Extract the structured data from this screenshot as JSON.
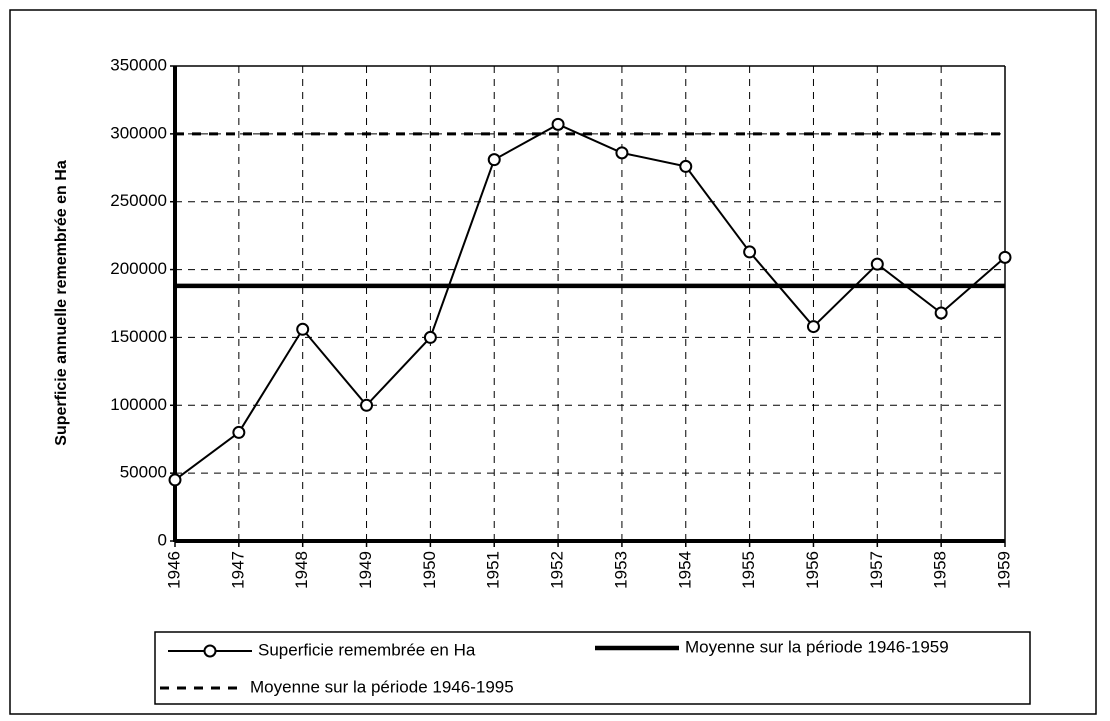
{
  "chart_data": {
    "type": "line",
    "y_label": "Superficie annuelle remembrée en Ha",
    "categories": [
      "1946",
      "1947",
      "1948",
      "1949",
      "1950",
      "1951",
      "1952",
      "1953",
      "1954",
      "1955",
      "1956",
      "1957",
      "1958",
      "1959"
    ],
    "series": [
      {
        "name": "Superficie remembrée en Ha",
        "color": "#000000",
        "line_style": "solid",
        "marker": "circle",
        "values": [
          45000,
          80000,
          156000,
          100000,
          150000,
          281000,
          307000,
          286000,
          276000,
          213000,
          158000,
          204000,
          168000,
          209000
        ]
      },
      {
        "name": "Moyenne sur la période 1946-1959",
        "color": "#000000",
        "line_style": "solid",
        "marker": "none",
        "values": [
          188000,
          188000,
          188000,
          188000,
          188000,
          188000,
          188000,
          188000,
          188000,
          188000,
          188000,
          188000,
          188000,
          188000
        ]
      },
      {
        "name": "Moyenne sur la période 1946-1995",
        "color": "#000000",
        "line_style": "dashed",
        "marker": "none",
        "values": [
          300000,
          300000,
          300000,
          300000,
          300000,
          300000,
          300000,
          300000,
          300000,
          300000,
          300000,
          300000,
          300000,
          300000
        ]
      }
    ],
    "ylim": [
      0,
      350000
    ],
    "yticks": [
      0,
      50000,
      100000,
      150000,
      200000,
      250000,
      300000,
      350000
    ],
    "grid": true
  }
}
